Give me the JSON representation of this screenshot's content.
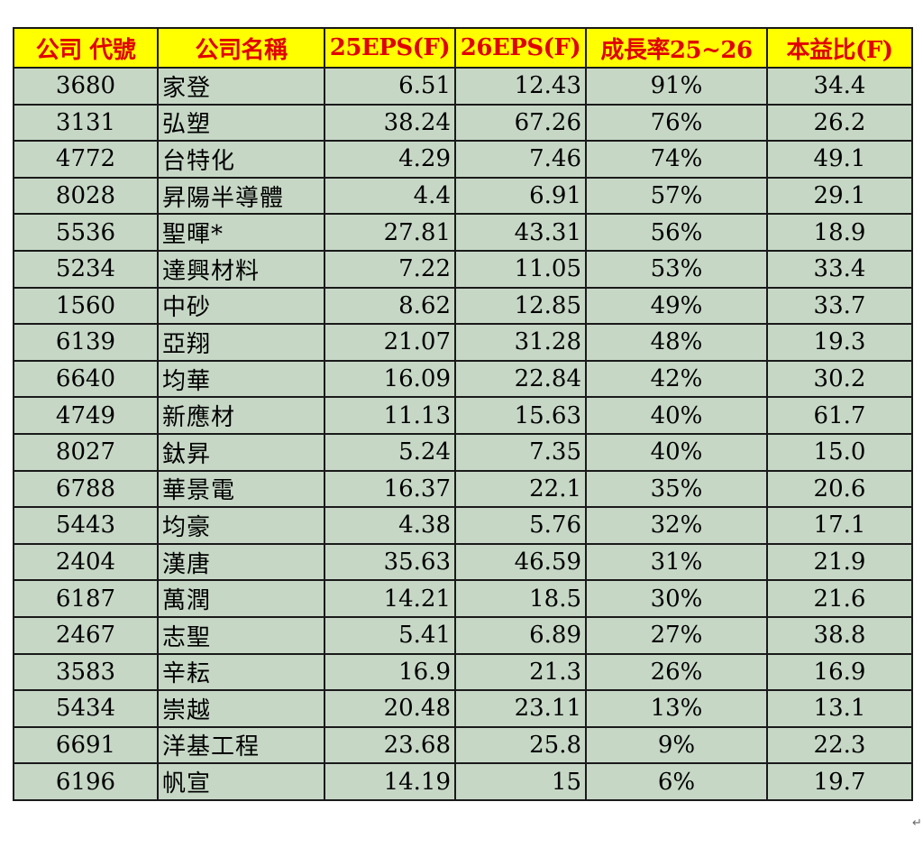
{
  "colors": {
    "header_bg": "#ffff00",
    "header_text": "#e00000",
    "row_bg": "#c6d7c6",
    "border": "#1a1a1a"
  },
  "table": {
    "headers": [
      "公司 代號",
      "公司名稱",
      "25EPS(F)",
      "26EPS(F)",
      "成長率25~26",
      "本益比(F)"
    ],
    "rows": [
      [
        "3680",
        "家登",
        "6.51",
        "12.43",
        "91%",
        "34.4"
      ],
      [
        "3131",
        "弘塑",
        "38.24",
        "67.26",
        "76%",
        "26.2"
      ],
      [
        "4772",
        "台特化",
        "4.29",
        "7.46",
        "74%",
        "49.1"
      ],
      [
        "8028",
        "昇陽半導體",
        "4.4",
        "6.91",
        "57%",
        "29.1"
      ],
      [
        "5536",
        "聖暉*",
        "27.81",
        "43.31",
        "56%",
        "18.9"
      ],
      [
        "5234",
        "達興材料",
        "7.22",
        "11.05",
        "53%",
        "33.4"
      ],
      [
        "1560",
        "中砂",
        "8.62",
        "12.85",
        "49%",
        "33.7"
      ],
      [
        "6139",
        "亞翔",
        "21.07",
        "31.28",
        "48%",
        "19.3"
      ],
      [
        "6640",
        "均華",
        "16.09",
        "22.84",
        "42%",
        "30.2"
      ],
      [
        "4749",
        "新應材",
        "11.13",
        "15.63",
        "40%",
        "61.7"
      ],
      [
        "8027",
        "鈦昇",
        "5.24",
        "7.35",
        "40%",
        "15.0"
      ],
      [
        "6788",
        "華景電",
        "16.37",
        "22.1",
        "35%",
        "20.6"
      ],
      [
        "5443",
        "均豪",
        "4.38",
        "5.76",
        "32%",
        "17.1"
      ],
      [
        "2404",
        "漢唐",
        "35.63",
        "46.59",
        "31%",
        "21.9"
      ],
      [
        "6187",
        "萬潤",
        "14.21",
        "18.5",
        "30%",
        "21.6"
      ],
      [
        "2467",
        "志聖",
        "5.41",
        "6.89",
        "27%",
        "38.8"
      ],
      [
        "3583",
        "辛耘",
        "16.9",
        "21.3",
        "26%",
        "16.9"
      ],
      [
        "5434",
        "崇越",
        "20.48",
        "23.11",
        "13%",
        "13.1"
      ],
      [
        "6691",
        "洋基工程",
        "23.68",
        "25.8",
        "9%",
        "22.3"
      ],
      [
        "6196",
        "帆宣",
        "14.19",
        "15",
        "6%",
        "19.7"
      ]
    ]
  },
  "paragraph_mark": "↵"
}
